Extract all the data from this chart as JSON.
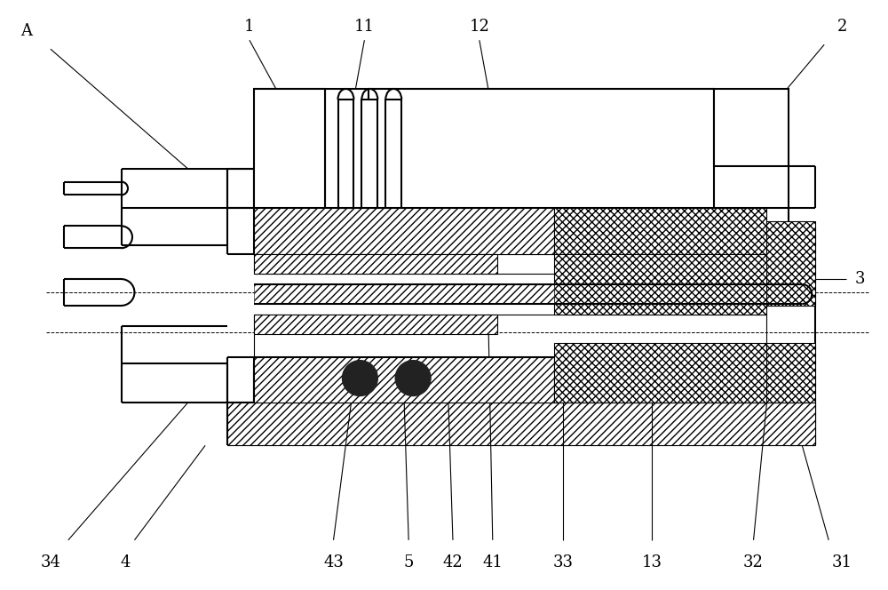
{
  "bg_color": "#ffffff",
  "line_color": "#000000",
  "lw": 1.5,
  "lw_thin": 0.8,
  "figure_width": 10.0,
  "figure_height": 6.64,
  "dpi": 100
}
